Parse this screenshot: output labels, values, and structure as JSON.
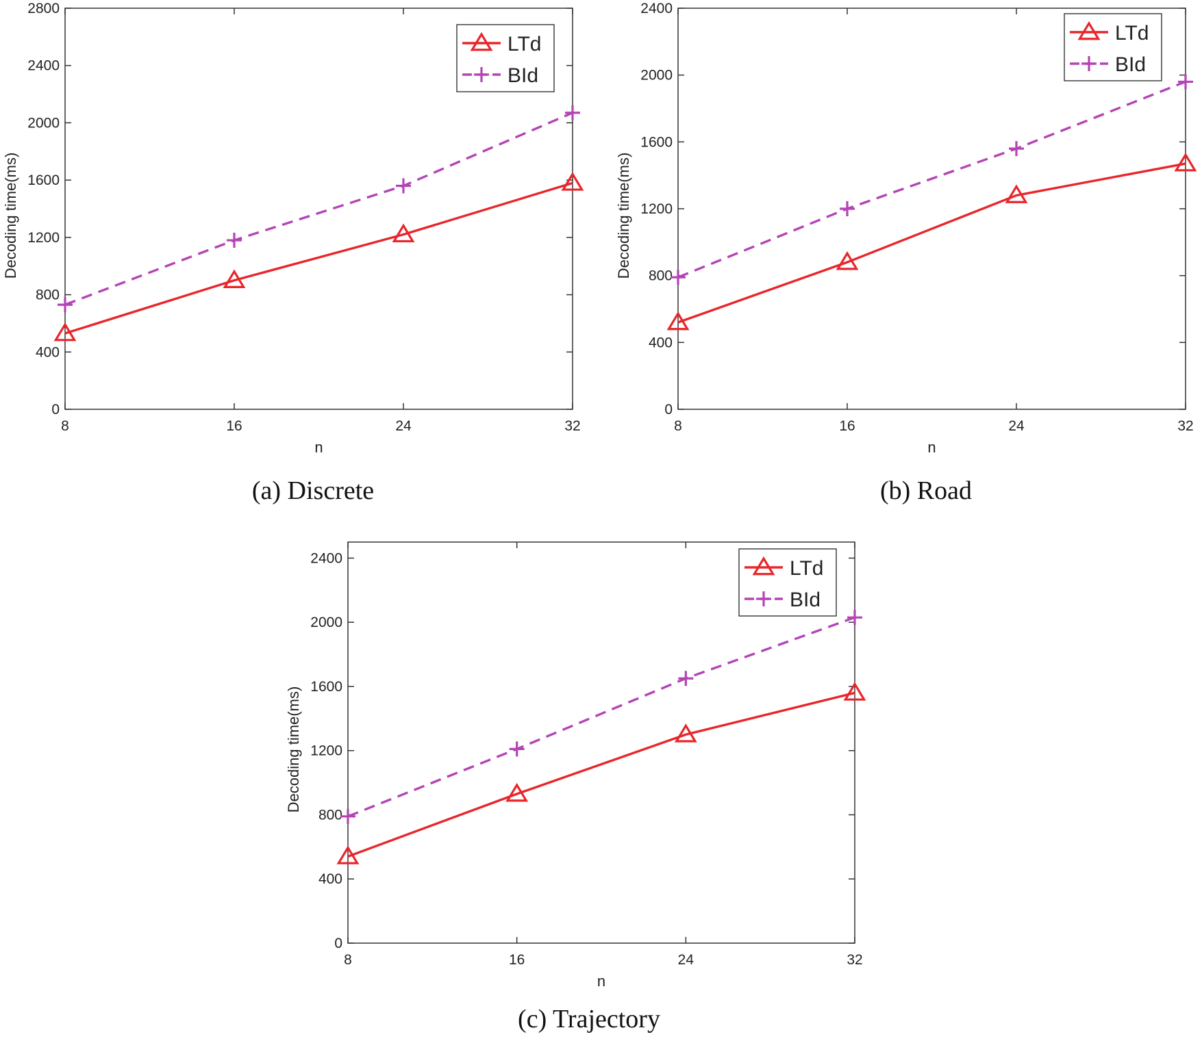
{
  "chart_data": [
    {
      "type": "line",
      "caption": "(a) Discrete",
      "xlabel": "n",
      "ylabel": "Decoding time(ms)",
      "x": [
        8,
        16,
        24,
        32
      ],
      "xticks": [
        "8",
        "16",
        "24",
        "32"
      ],
      "ylim": [
        0,
        2800
      ],
      "yticks": [
        "0",
        "400",
        "800",
        "1200",
        "1600",
        "2000",
        "2400",
        "2800"
      ],
      "legend_position": "top-right",
      "series": [
        {
          "name": "LTd",
          "color": "#e8262b",
          "line_style": "solid",
          "marker": "triangle",
          "values": [
            530,
            900,
            1220,
            1580
          ]
        },
        {
          "name": "BId",
          "color": "#b444b5",
          "line_style": "dashed",
          "marker": "plus",
          "values": [
            730,
            1180,
            1560,
            2070
          ]
        }
      ]
    },
    {
      "type": "line",
      "caption": "(b) Road",
      "xlabel": "n",
      "ylabel": "Decoding time(ms)",
      "x": [
        8,
        16,
        24,
        32
      ],
      "xticks": [
        "8",
        "16",
        "24",
        "32"
      ],
      "ylim": [
        0,
        2400
      ],
      "yticks": [
        "0",
        "400",
        "800",
        "1200",
        "1600",
        "2000",
        "2400"
      ],
      "legend_position": "top-right",
      "series": [
        {
          "name": "LTd",
          "color": "#e8262b",
          "line_style": "solid",
          "marker": "triangle",
          "values": [
            520,
            880,
            1280,
            1470
          ]
        },
        {
          "name": "BId",
          "color": "#b444b5",
          "line_style": "dashed",
          "marker": "plus",
          "values": [
            790,
            1200,
            1560,
            1960
          ]
        }
      ]
    },
    {
      "type": "line",
      "caption": "(c) Trajectory",
      "xlabel": "n",
      "ylabel": "Decoding time(ms)",
      "x": [
        8,
        16,
        24,
        32
      ],
      "xticks": [
        "8",
        "16",
        "24",
        "32"
      ],
      "ylim": [
        0,
        2500
      ],
      "yticks": [
        "0",
        "400",
        "800",
        "1200",
        "1600",
        "2000",
        "2400"
      ],
      "legend_position": "top-right",
      "series": [
        {
          "name": "LTd",
          "color": "#e8262b",
          "line_style": "solid",
          "marker": "triangle",
          "values": [
            540,
            930,
            1300,
            1560
          ]
        },
        {
          "name": "BId",
          "color": "#b444b5",
          "line_style": "dashed",
          "marker": "plus",
          "values": [
            790,
            1210,
            1650,
            2030
          ]
        }
      ]
    }
  ]
}
